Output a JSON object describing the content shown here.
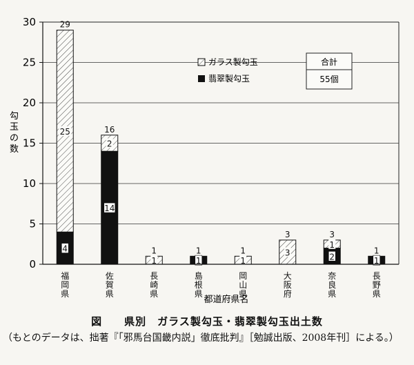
{
  "chart_data": {
    "type": "bar",
    "stacked": true,
    "ylabel": "勾玉の数",
    "xlabel": "都道府県名",
    "ylim": [
      0,
      30
    ],
    "yticks": [
      0,
      5,
      10,
      15,
      20,
      25,
      30
    ],
    "grid": true,
    "legend_position": "top-center",
    "categories": [
      "福岡県",
      "佐賀県",
      "長崎県",
      "島根県",
      "岡山県",
      "大阪府",
      "奈良県",
      "長野県"
    ],
    "series": [
      {
        "name": "翡翠製勾玉",
        "pattern": "solid",
        "color": "#111111",
        "values": [
          4,
          14,
          0,
          1,
          0,
          0,
          2,
          1
        ]
      },
      {
        "name": "ガラス製勾玉",
        "pattern": "hatched",
        "color": "#ffffff",
        "values": [
          25,
          2,
          1,
          0,
          1,
          3,
          1,
          0
        ]
      }
    ],
    "totals": [
      29,
      16,
      1,
      1,
      1,
      3,
      3,
      1
    ],
    "segment_labels": [
      {
        "category": 0,
        "jade": "4",
        "glass": "25"
      },
      {
        "category": 1,
        "jade": "14",
        "glass": "2"
      },
      {
        "category": 2,
        "jade": "",
        "glass": "1"
      },
      {
        "category": 3,
        "jade": "1",
        "glass": ""
      },
      {
        "category": 4,
        "jade": "",
        "glass": "1"
      },
      {
        "category": 5,
        "jade": "",
        "glass": "3"
      },
      {
        "category": 6,
        "jade": "2",
        "glass": "1"
      },
      {
        "category": 7,
        "jade": "1",
        "glass": ""
      }
    ],
    "legend": {
      "glass_label": "ガラス製勾玉",
      "jade_label": "翡翠製勾玉"
    },
    "total_box": {
      "label": "合計",
      "value": "55個"
    }
  },
  "caption": "図　　県別　ガラス製勾玉・翡翠製勾玉出土数",
  "source_note": "（もとのデータは、拙著『「邪馬台国畿内説」徹底批判』［勉誠出版、2008年刊］による。）"
}
